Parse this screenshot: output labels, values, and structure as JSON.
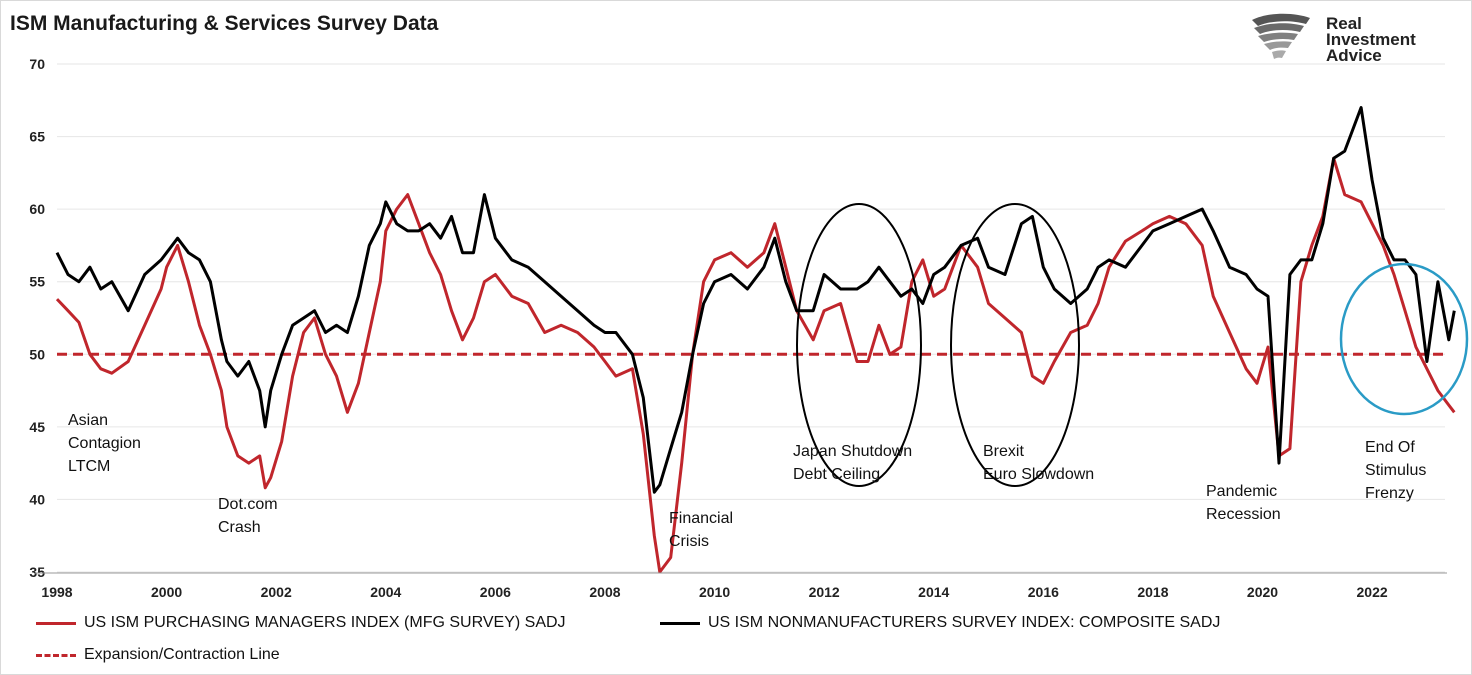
{
  "title": "ISM Manufacturing & Services Survey Data",
  "logo": {
    "line1": "Real",
    "line2": "Investment",
    "line3": "Advice"
  },
  "colors": {
    "mfg": "#c0262c",
    "svc": "#000000",
    "line50": "#c0262c",
    "circle_black": "#000000",
    "circle_blue": "#2a9bc6"
  },
  "legend": {
    "mfg": "US ISM PURCHASING MANAGERS INDEX (MFG SURVEY) SADJ",
    "svc": "US ISM NONMANUFACTURERS SURVEY INDEX: COMPOSITE SADJ",
    "line": "Expansion/Contraction Line"
  },
  "annotations": [
    {
      "id": "asian",
      "lines": [
        "Asian",
        "Contagion",
        "LTCM"
      ]
    },
    {
      "id": "dotcom",
      "lines": [
        "Dot.com",
        "Crash"
      ]
    },
    {
      "id": "financial",
      "lines": [
        "Financial",
        "Crisis"
      ]
    },
    {
      "id": "japan",
      "lines": [
        "Japan Shutdown",
        "Debt Ceiling"
      ]
    },
    {
      "id": "brexit",
      "lines": [
        "Brexit",
        "Euro Slowdown"
      ]
    },
    {
      "id": "pandemic",
      "lines": [
        "Pandemic",
        "Recession"
      ]
    },
    {
      "id": "stimulus",
      "lines": [
        "End Of",
        "Stimulus",
        "Frenzy"
      ]
    }
  ],
  "chart_data": {
    "type": "line",
    "title": "ISM Manufacturing & Services Survey Data",
    "xlim": [
      1998,
      2023.75
    ],
    "ylim": [
      35,
      70
    ],
    "x_ticks": [
      "1998",
      "2000",
      "2002",
      "2004",
      "2006",
      "2008",
      "2010",
      "2012",
      "2014",
      "2016",
      "2018",
      "2020",
      "2022"
    ],
    "y_ticks": [
      "35",
      "40",
      "45",
      "50",
      "55",
      "60",
      "65",
      "70"
    ],
    "reference_line": {
      "y": 50,
      "label": "Expansion/Contraction Line"
    },
    "series": [
      {
        "name": "US ISM PURCHASING MANAGERS INDEX (MFG SURVEY) SADJ",
        "x": [
          1998.0,
          1998.2,
          1998.4,
          1998.6,
          1998.8,
          1999.0,
          1999.3,
          1999.6,
          1999.9,
          2000.0,
          2000.2,
          2000.4,
          2000.6,
          2000.8,
          2001.0,
          2001.1,
          2001.3,
          2001.5,
          2001.7,
          2001.8,
          2001.9,
          2002.1,
          2002.3,
          2002.5,
          2002.7,
          2002.9,
          2003.1,
          2003.3,
          2003.5,
          2003.7,
          2003.9,
          2004.0,
          2004.2,
          2004.4,
          2004.6,
          2004.8,
          2005.0,
          2005.2,
          2005.4,
          2005.6,
          2005.8,
          2006.0,
          2006.3,
          2006.6,
          2006.9,
          2007.2,
          2007.5,
          2007.8,
          2008.0,
          2008.2,
          2008.5,
          2008.7,
          2008.9,
          2009.0,
          2009.2,
          2009.4,
          2009.6,
          2009.8,
          2010.0,
          2010.3,
          2010.6,
          2010.9,
          2011.1,
          2011.3,
          2011.5,
          2011.8,
          2012.0,
          2012.3,
          2012.6,
          2012.8,
          2013.0,
          2013.2,
          2013.4,
          2013.6,
          2013.8,
          2014.0,
          2014.2,
          2014.5,
          2014.8,
          2015.0,
          2015.3,
          2015.6,
          2015.8,
          2016.0,
          2016.2,
          2016.5,
          2016.8,
          2017.0,
          2017.2,
          2017.5,
          2017.8,
          2018.0,
          2018.3,
          2018.6,
          2018.9,
          2019.1,
          2019.4,
          2019.7,
          2019.9,
          2020.1,
          2020.3,
          2020.5,
          2020.7,
          2020.9,
          2021.1,
          2021.3,
          2021.5,
          2021.8,
          2022.0,
          2022.2,
          2022.4,
          2022.6,
          2022.8,
          2023.0,
          2023.2,
          2023.4,
          2023.5
        ],
        "y": [
          53.8,
          53.0,
          52.2,
          50.0,
          49.0,
          48.7,
          49.5,
          52.0,
          54.5,
          56.0,
          57.5,
          55.0,
          52.0,
          50.0,
          47.5,
          45.0,
          43.0,
          42.5,
          43.0,
          40.8,
          41.5,
          44.0,
          48.5,
          51.5,
          52.5,
          50.0,
          48.5,
          46.0,
          48.0,
          51.5,
          55.0,
          58.5,
          60.0,
          61.0,
          59.0,
          57.0,
          55.5,
          53.0,
          51.0,
          52.5,
          55.0,
          55.5,
          54.0,
          53.5,
          51.5,
          52.0,
          51.5,
          50.5,
          49.5,
          48.5,
          49.0,
          44.5,
          37.5,
          35.0,
          36.0,
          42.5,
          50.0,
          55.0,
          56.5,
          57.0,
          56.0,
          57.0,
          59.0,
          56.0,
          53.0,
          51.0,
          53.0,
          53.5,
          49.5,
          49.5,
          52.0,
          50.0,
          50.5,
          55.0,
          56.5,
          54.0,
          54.5,
          57.5,
          56.0,
          53.5,
          52.5,
          51.5,
          48.5,
          48.0,
          49.5,
          51.5,
          52.0,
          53.5,
          56.0,
          57.8,
          58.5,
          59.0,
          59.5,
          59.0,
          57.5,
          54.0,
          51.5,
          49.0,
          48.0,
          50.5,
          43.0,
          43.5,
          55.0,
          57.5,
          59.5,
          63.5,
          61.0,
          60.5,
          59.0,
          57.5,
          55.5,
          53.0,
          50.5,
          49.0,
          47.5,
          46.5,
          46.0
        ]
      },
      {
        "name": "US ISM NONMANUFACTURERS SURVEY INDEX: COMPOSITE SADJ",
        "x": [
          1998.0,
          1998.2,
          1998.4,
          1998.6,
          1998.8,
          1999.0,
          1999.3,
          1999.6,
          1999.9,
          2000.0,
          2000.2,
          2000.4,
          2000.6,
          2000.8,
          2001.0,
          2001.1,
          2001.3,
          2001.5,
          2001.7,
          2001.8,
          2001.9,
          2002.1,
          2002.3,
          2002.5,
          2002.7,
          2002.9,
          2003.1,
          2003.3,
          2003.5,
          2003.7,
          2003.9,
          2004.0,
          2004.2,
          2004.4,
          2004.6,
          2004.8,
          2005.0,
          2005.2,
          2005.4,
          2005.6,
          2005.8,
          2006.0,
          2006.3,
          2006.6,
          2006.9,
          2007.2,
          2007.5,
          2007.8,
          2008.0,
          2008.2,
          2008.5,
          2008.7,
          2008.9,
          2009.0,
          2009.2,
          2009.4,
          2009.6,
          2009.8,
          2010.0,
          2010.3,
          2010.6,
          2010.9,
          2011.1,
          2011.3,
          2011.5,
          2011.8,
          2012.0,
          2012.3,
          2012.6,
          2012.8,
          2013.0,
          2013.2,
          2013.4,
          2013.6,
          2013.8,
          2014.0,
          2014.2,
          2014.5,
          2014.8,
          2015.0,
          2015.3,
          2015.6,
          2015.8,
          2016.0,
          2016.2,
          2016.5,
          2016.8,
          2017.0,
          2017.2,
          2017.5,
          2017.8,
          2018.0,
          2018.3,
          2018.6,
          2018.9,
          2019.1,
          2019.4,
          2019.7,
          2019.9,
          2020.1,
          2020.3,
          2020.5,
          2020.7,
          2020.9,
          2021.1,
          2021.3,
          2021.5,
          2021.8,
          2022.0,
          2022.2,
          2022.4,
          2022.6,
          2022.8,
          2023.0,
          2023.2,
          2023.4,
          2023.5
        ],
        "y": [
          57.0,
          55.5,
          55.0,
          56.0,
          54.5,
          55.0,
          53.0,
          55.5,
          56.5,
          57.0,
          58.0,
          57.0,
          56.5,
          55.0,
          51.0,
          49.5,
          48.5,
          49.5,
          47.5,
          45.0,
          47.5,
          50.0,
          52.0,
          52.5,
          53.0,
          51.5,
          52.0,
          51.5,
          54.0,
          57.5,
          59.0,
          60.5,
          59.0,
          58.5,
          58.5,
          59.0,
          58.0,
          59.5,
          57.0,
          57.0,
          61.0,
          58.0,
          56.5,
          56.0,
          55.0,
          54.0,
          53.0,
          52.0,
          51.5,
          51.5,
          50.0,
          47.0,
          40.5,
          41.0,
          43.5,
          46.0,
          50.0,
          53.5,
          55.0,
          55.5,
          54.5,
          56.0,
          58.0,
          55.0,
          53.0,
          53.0,
          55.5,
          54.5,
          54.5,
          55.0,
          56.0,
          55.0,
          54.0,
          54.5,
          53.5,
          55.5,
          56.0,
          57.5,
          58.0,
          56.0,
          55.5,
          59.0,
          59.5,
          56.0,
          54.5,
          53.5,
          54.5,
          56.0,
          56.5,
          56.0,
          57.5,
          58.5,
          59.0,
          59.5,
          60.0,
          58.5,
          56.0,
          55.5,
          54.5,
          54.0,
          42.5,
          55.5,
          56.5,
          56.5,
          59.0,
          63.5,
          64.0,
          67.0,
          62.0,
          58.0,
          56.5,
          56.5,
          55.5,
          49.5,
          55.0,
          51.0,
          53.0
        ]
      }
    ]
  }
}
